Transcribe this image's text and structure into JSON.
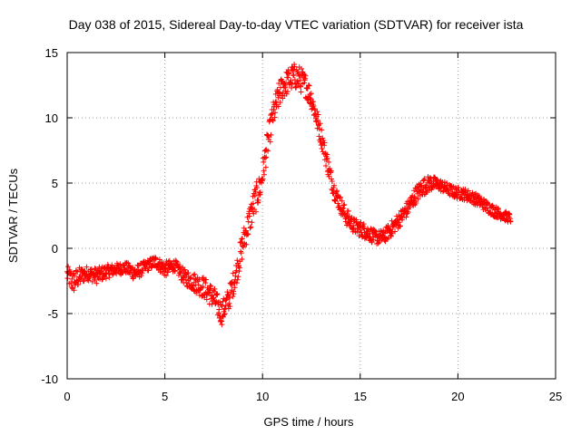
{
  "chart_data": {
    "type": "scatter",
    "title": "Day 038 of 2015, Sidereal Day-to-day VTEC variation (SDTVAR) for receiver ista",
    "xlabel": "GPS time / hours",
    "ylabel": "SDTVAR / TECUs",
    "xlim": [
      0,
      25
    ],
    "ylim": [
      -10,
      15
    ],
    "xticks": [
      0,
      5,
      10,
      15,
      20,
      25
    ],
    "yticks": [
      -10,
      -5,
      0,
      5,
      10,
      15
    ],
    "xtick_labels": [
      "0",
      "5",
      "10",
      "15",
      "20",
      "25"
    ],
    "ytick_labels": [
      "-10",
      "-5",
      "0",
      "5",
      "10",
      "15"
    ],
    "grid": true,
    "marker": "+",
    "color": "#ff0000",
    "series": [
      {
        "name": "SDTVAR",
        "trend_x": [
          0.0,
          0.3,
          0.6,
          1.0,
          1.5,
          2.0,
          2.5,
          3.0,
          3.5,
          4.0,
          4.5,
          5.0,
          5.5,
          6.0,
          6.5,
          7.0,
          7.5,
          7.9,
          8.3,
          8.7,
          9.0,
          9.3,
          9.6,
          9.9,
          10.2,
          10.5,
          10.8,
          11.0,
          11.3,
          11.6,
          11.9,
          12.2,
          12.5,
          12.8,
          13.1,
          13.4,
          13.7,
          14.0,
          14.3,
          14.7,
          15.0,
          15.4,
          15.8,
          16.2,
          16.6,
          17.0,
          17.4,
          17.8,
          18.2,
          18.6,
          19.0,
          19.4,
          19.8,
          20.2,
          20.6,
          21.0,
          21.4,
          21.8,
          22.2,
          22.7
        ],
        "trend_y": [
          -2.0,
          -2.6,
          -2.2,
          -1.9,
          -2.1,
          -1.8,
          -1.6,
          -1.5,
          -1.9,
          -1.4,
          -1.0,
          -1.6,
          -1.3,
          -2.2,
          -2.6,
          -3.0,
          -3.8,
          -5.0,
          -3.8,
          -1.6,
          0.4,
          2.0,
          3.6,
          4.8,
          7.5,
          10.0,
          11.5,
          12.3,
          12.8,
          13.2,
          13.0,
          12.5,
          11.5,
          9.8,
          8.0,
          6.0,
          4.3,
          3.3,
          2.4,
          1.7,
          1.5,
          1.2,
          0.8,
          0.9,
          1.5,
          2.2,
          3.0,
          4.0,
          4.7,
          5.0,
          4.9,
          4.6,
          4.3,
          4.2,
          4.0,
          3.7,
          3.3,
          2.9,
          2.6,
          2.3
        ],
        "band": [
          0.9,
          1.2,
          1.0,
          0.7,
          0.8,
          0.7,
          0.6,
          0.6,
          0.8,
          0.6,
          0.6,
          0.8,
          0.6,
          0.8,
          1.0,
          1.1,
          1.2,
          1.2,
          1.2,
          1.3,
          1.4,
          1.5,
          1.5,
          1.4,
          1.4,
          1.3,
          1.4,
          1.3,
          1.3,
          1.3,
          1.3,
          1.2,
          1.1,
          1.1,
          1.0,
          1.0,
          0.9,
          0.9,
          0.9,
          0.8,
          0.8,
          0.8,
          0.7,
          0.7,
          0.8,
          0.8,
          0.8,
          0.9,
          0.9,
          0.8,
          0.6,
          0.6,
          0.6,
          0.6,
          0.6,
          0.6,
          0.6,
          0.6,
          0.5,
          0.5
        ]
      }
    ]
  }
}
